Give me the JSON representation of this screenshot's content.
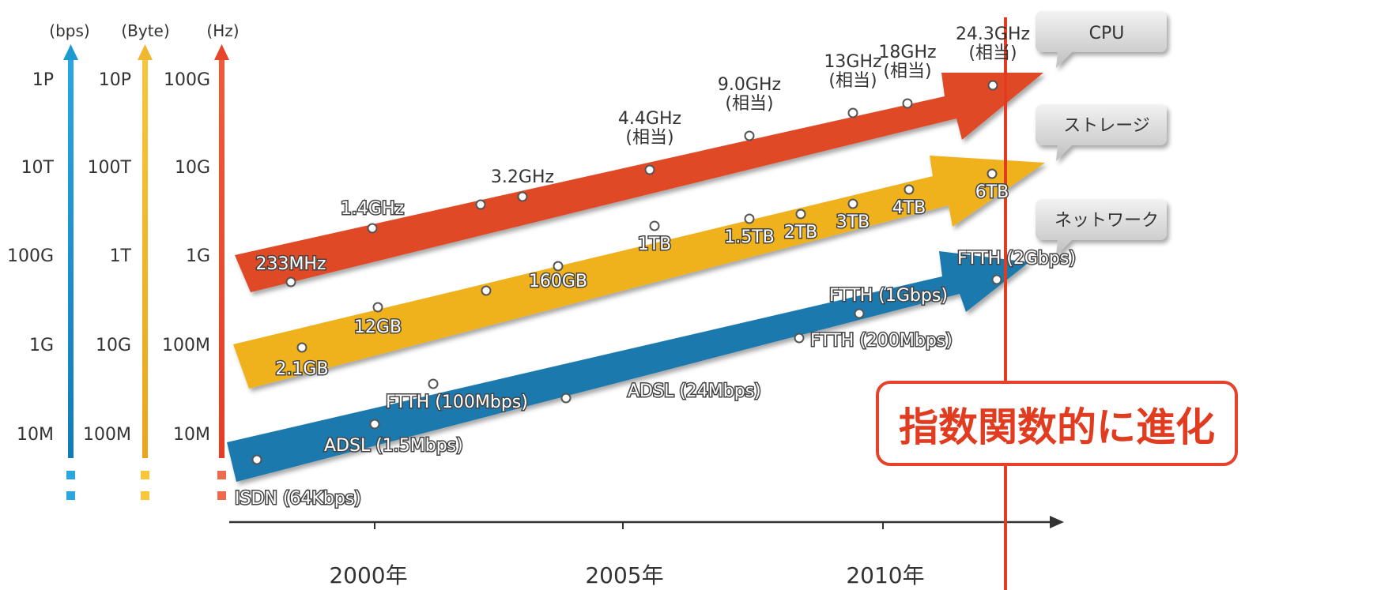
{
  "chart_data": {
    "type": "scatter",
    "title": "",
    "xlabel": "",
    "ylabel": "",
    "x_ticks": [
      "2000年",
      "2005年",
      "2010年"
    ],
    "xlim": [
      1997.3,
      2013
    ],
    "axes": [
      {
        "unit": "(bps)",
        "color": "#1f9ad0",
        "ticks": [
          "1P",
          "10T",
          "100G",
          "1G",
          "10M"
        ]
      },
      {
        "unit": "(Byte)",
        "color": "#f0b830",
        "ticks": [
          "10P",
          "100T",
          "1T",
          "10G",
          "100M"
        ]
      },
      {
        "unit": "(Hz)",
        "color": "#e6462a",
        "ticks": [
          "100G",
          "10G",
          "1G",
          "100M",
          "10M"
        ]
      }
    ],
    "series": [
      {
        "name": "CPU",
        "color": "#e04a25",
        "unit": "Hz",
        "points": [
          {
            "x": 1998.4,
            "y": 233000000.0,
            "label": "233MHz"
          },
          {
            "x": 2000.0,
            "y": 1400000000.0,
            "label": "1.4GHz"
          },
          {
            "x": 2002.1,
            "y": 2200000000.0,
            "label": ""
          },
          {
            "x": 2002.9,
            "y": 3200000000.0,
            "label": "3.2GHz"
          },
          {
            "x": 2005.5,
            "y": 4400000000.0,
            "label": "4.4GHz\n(相当)"
          },
          {
            "x": 2007.5,
            "y": 9000000000.0,
            "label": "9.0GHz\n(相当)"
          },
          {
            "x": 2009.5,
            "y": 13000000000.0,
            "label": "13GHz\n(相当)"
          },
          {
            "x": 2010.6,
            "y": 18000000000.0,
            "label": "18GHz\n(相当)"
          },
          {
            "x": 2012.2,
            "y": 24300000000.0,
            "label": "24.3GHz\n(相当)"
          }
        ]
      },
      {
        "name": "ストレージ",
        "color": "#f0b21c",
        "unit": "Byte",
        "points": [
          {
            "x": 1998.6,
            "y": 2100000000.0,
            "label": "2.1GB"
          },
          {
            "x": 2000.0,
            "y": 12000000000.0,
            "label": "12GB"
          },
          {
            "x": 2002.2,
            "y": 30000000000.0,
            "label": ""
          },
          {
            "x": 2003.6,
            "y": 160000000000.0,
            "label": "160GB"
          },
          {
            "x": 2005.6,
            "y": 1000000000000.0,
            "label": "1TB"
          },
          {
            "x": 2007.5,
            "y": 1500000000000.0,
            "label": "1.5TB"
          },
          {
            "x": 2008.4,
            "y": 2000000000000.0,
            "label": "2TB"
          },
          {
            "x": 2009.5,
            "y": 3000000000000.0,
            "label": "3TB"
          },
          {
            "x": 2010.6,
            "y": 4000000000000.0,
            "label": "4TB"
          },
          {
            "x": 2012.2,
            "y": 6000000000000.0,
            "label": "6TB"
          }
        ]
      },
      {
        "name": "ネットワーク",
        "color": "#1a79ae",
        "unit": "bps",
        "points": [
          {
            "x": 1997.6,
            "y": 64000.0,
            "label": "ISDN (64Kbps)"
          },
          {
            "x": 2000.0,
            "y": 1500000.0,
            "label": "ADSL (1.5Mbps)"
          },
          {
            "x": 2001.2,
            "y": 100000000.0,
            "label": "FTTH (100Mbps)"
          },
          {
            "x": 2003.7,
            "y": 24000000.0,
            "label": "ADSL (24Mbps)"
          },
          {
            "x": 2008.5,
            "y": 200000000.0,
            "label": "FTTH (200Mbps)"
          },
          {
            "x": 2009.6,
            "y": 1000000000.0,
            "label": "FTTH (1Gbps)"
          },
          {
            "x": 2012.2,
            "y": 2000000000.0,
            "label": "FTTH (2Gbps)"
          }
        ]
      }
    ],
    "annotations": {
      "marker_year_line": 2012.2,
      "highlight_text": "指数関数的に進化"
    }
  }
}
